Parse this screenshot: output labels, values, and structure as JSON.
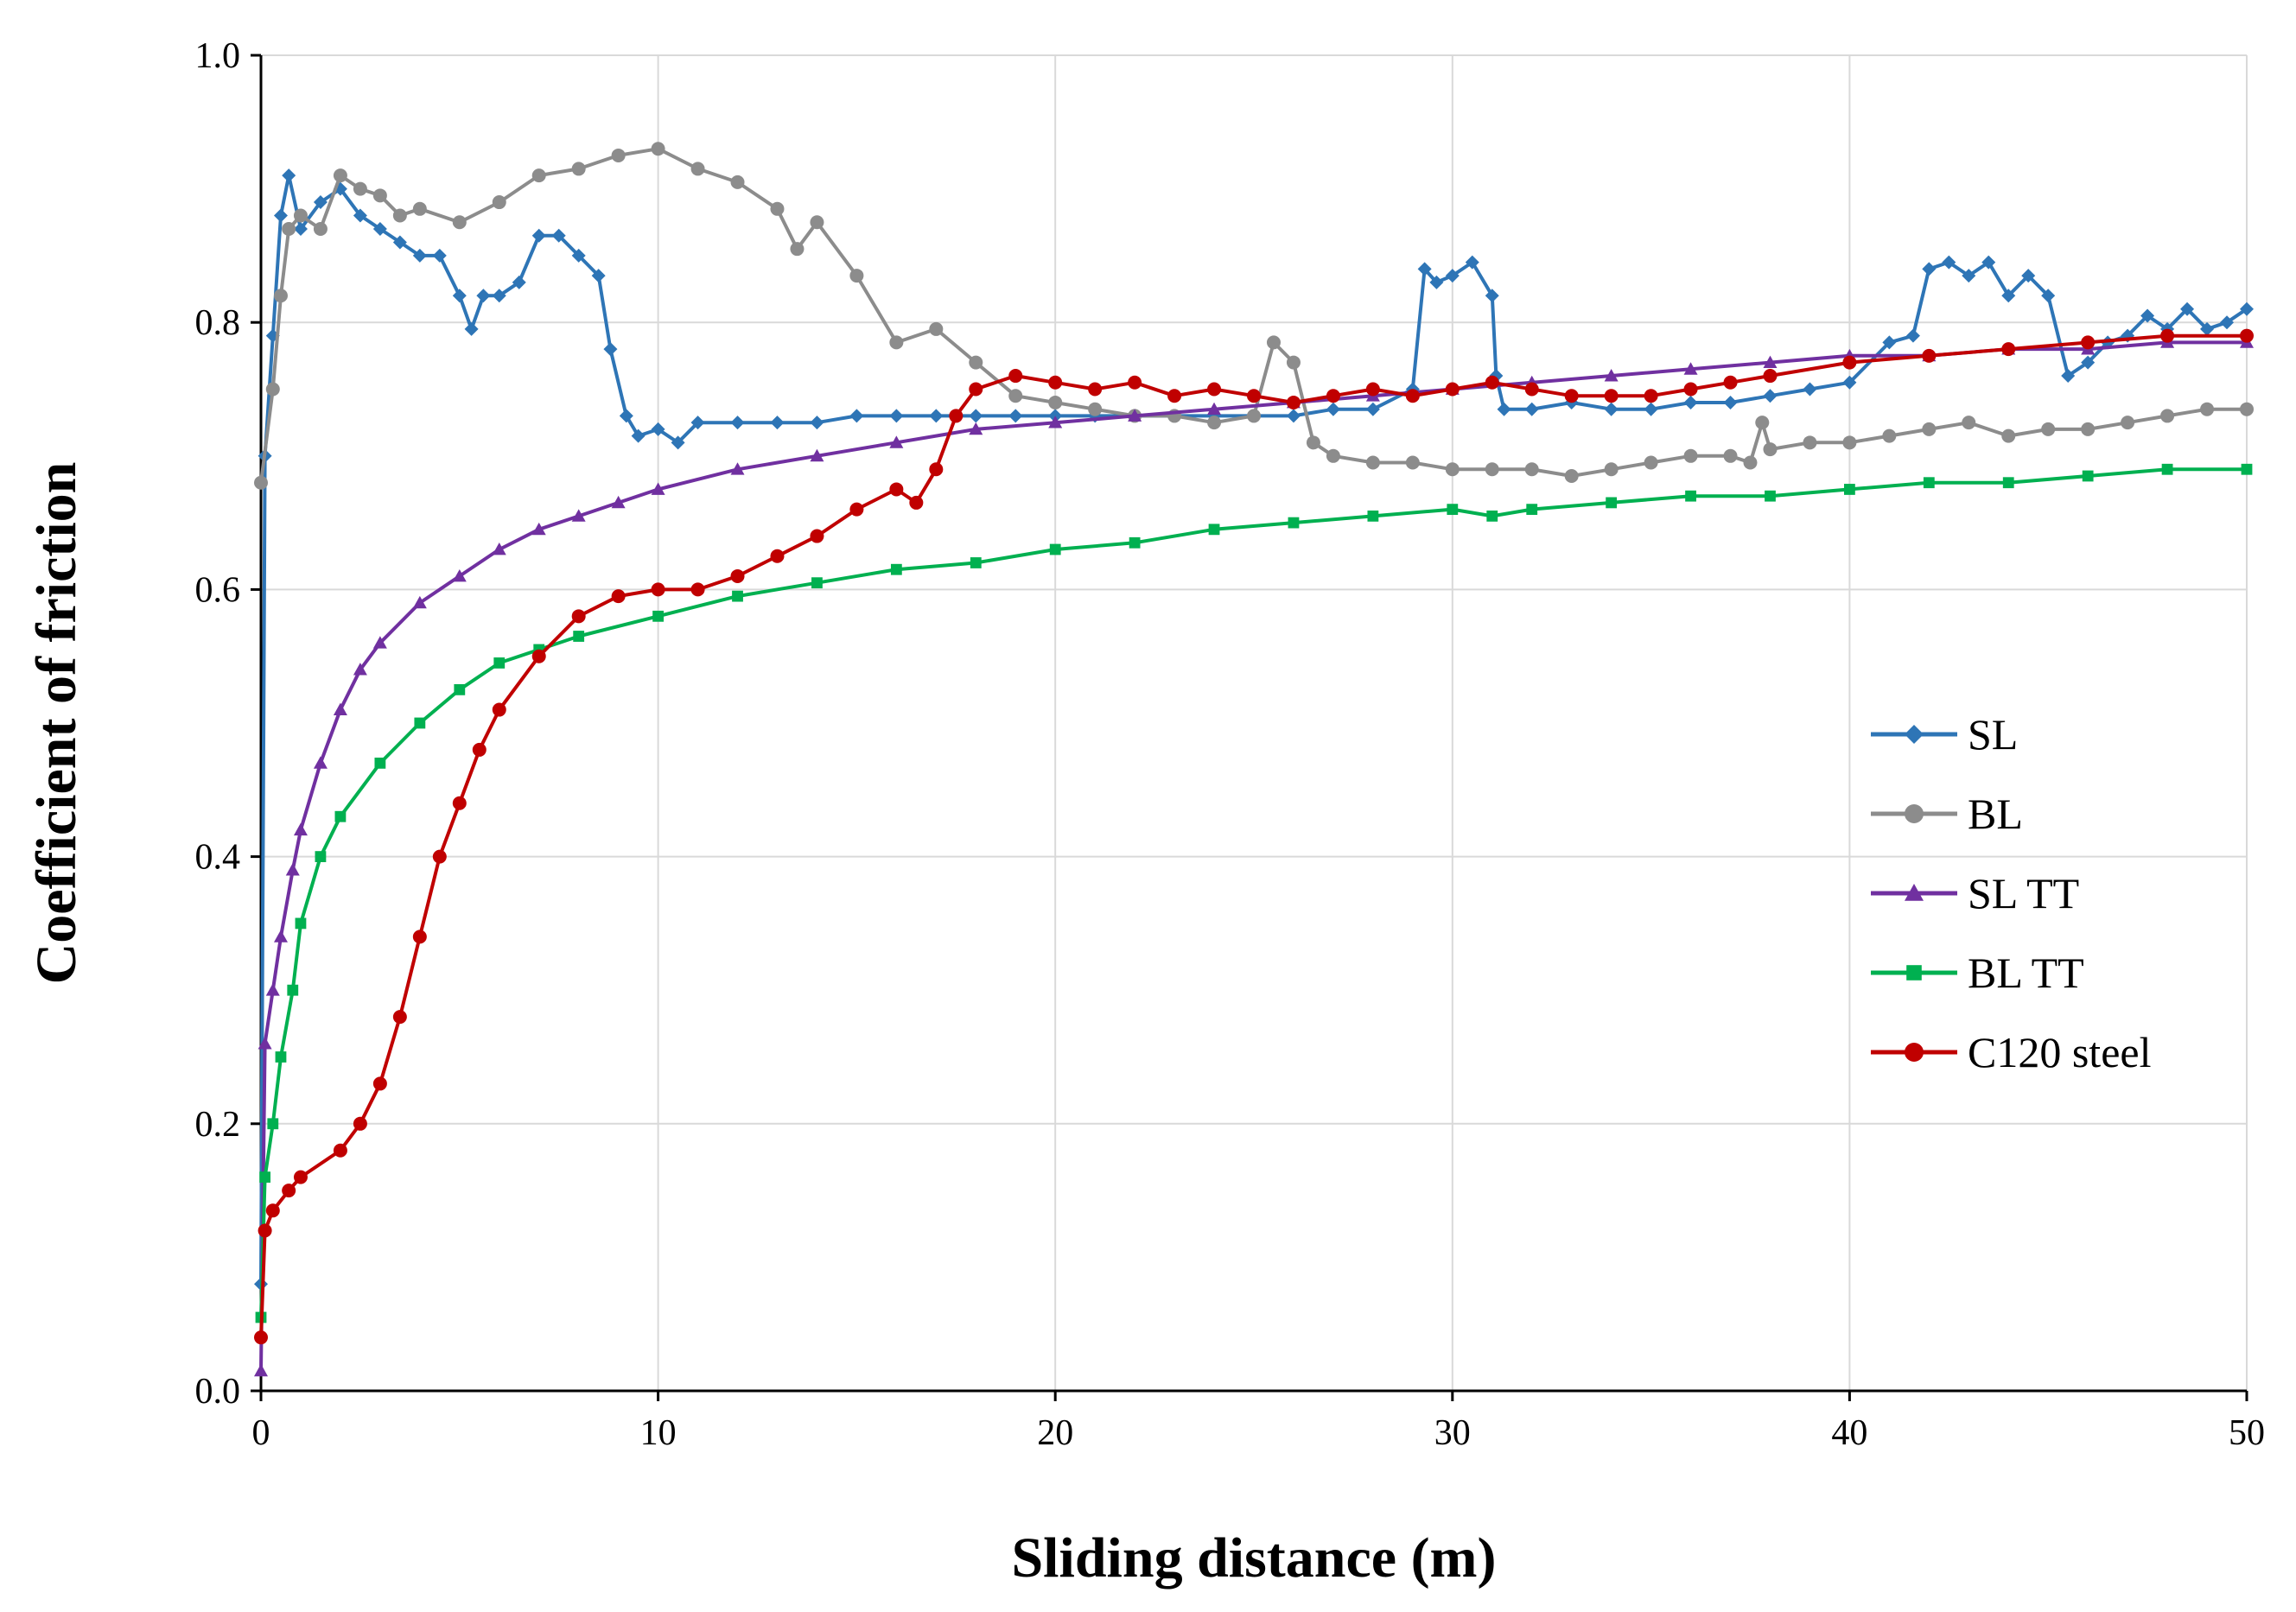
{
  "chart_data": {
    "type": "line",
    "title": "",
    "xlabel": "Sliding distance (m)",
    "ylabel": "Coefficient of friction",
    "xlim": [
      0,
      50
    ],
    "ylim": [
      0,
      1
    ],
    "xticks": [
      0,
      10,
      20,
      30,
      40,
      50
    ],
    "yticks": [
      0.0,
      0.2,
      0.4,
      0.6,
      0.8,
      1.0
    ],
    "xtick_labels": [
      "0",
      "10",
      "20",
      "30",
      "40",
      "50"
    ],
    "ytick_labels": [
      "0.0",
      "0.2",
      "0.4",
      "0.6",
      "0.8",
      "1.0"
    ],
    "grid": true,
    "legend_position": "right-center",
    "series": [
      {
        "name": "SL",
        "color": "#2E75B6",
        "marker": "diamond",
        "points": [
          [
            0,
            0.08
          ],
          [
            0.1,
            0.7
          ],
          [
            0.3,
            0.79
          ],
          [
            0.5,
            0.88
          ],
          [
            0.7,
            0.91
          ],
          [
            1,
            0.87
          ],
          [
            1.5,
            0.89
          ],
          [
            2,
            0.9
          ],
          [
            2.5,
            0.88
          ],
          [
            3,
            0.87
          ],
          [
            3.5,
            0.86
          ],
          [
            4,
            0.85
          ],
          [
            4.5,
            0.85
          ],
          [
            5,
            0.82
          ],
          [
            5.3,
            0.795
          ],
          [
            5.6,
            0.82
          ],
          [
            6,
            0.82
          ],
          [
            6.5,
            0.83
          ],
          [
            7,
            0.865
          ],
          [
            7.5,
            0.865
          ],
          [
            8,
            0.85
          ],
          [
            8.5,
            0.835
          ],
          [
            8.8,
            0.78
          ],
          [
            9.2,
            0.73
          ],
          [
            9.5,
            0.715
          ],
          [
            10,
            0.72
          ],
          [
            10.5,
            0.71
          ],
          [
            11,
            0.725
          ],
          [
            12,
            0.725
          ],
          [
            13,
            0.725
          ],
          [
            14,
            0.725
          ],
          [
            15,
            0.73
          ],
          [
            16,
            0.73
          ],
          [
            17,
            0.73
          ],
          [
            18,
            0.73
          ],
          [
            19,
            0.73
          ],
          [
            20,
            0.73
          ],
          [
            21,
            0.73
          ],
          [
            22,
            0.73
          ],
          [
            23,
            0.73
          ],
          [
            24,
            0.73
          ],
          [
            25,
            0.73
          ],
          [
            26,
            0.73
          ],
          [
            27,
            0.735
          ],
          [
            28,
            0.735
          ],
          [
            29,
            0.75
          ],
          [
            29.3,
            0.84
          ],
          [
            29.6,
            0.83
          ],
          [
            30,
            0.835
          ],
          [
            30.5,
            0.845
          ],
          [
            31,
            0.82
          ],
          [
            31.1,
            0.76
          ],
          [
            31.3,
            0.735
          ],
          [
            32,
            0.735
          ],
          [
            33,
            0.74
          ],
          [
            34,
            0.735
          ],
          [
            35,
            0.735
          ],
          [
            36,
            0.74
          ],
          [
            37,
            0.74
          ],
          [
            38,
            0.745
          ],
          [
            39,
            0.75
          ],
          [
            40,
            0.755
          ],
          [
            41,
            0.785
          ],
          [
            41.6,
            0.79
          ],
          [
            42,
            0.84
          ],
          [
            42.5,
            0.845
          ],
          [
            43,
            0.835
          ],
          [
            43.5,
            0.845
          ],
          [
            44,
            0.82
          ],
          [
            44.5,
            0.835
          ],
          [
            45,
            0.82
          ],
          [
            45.5,
            0.76
          ],
          [
            46,
            0.77
          ],
          [
            46.5,
            0.785
          ],
          [
            47,
            0.79
          ],
          [
            47.5,
            0.805
          ],
          [
            48,
            0.795
          ],
          [
            48.5,
            0.81
          ],
          [
            49,
            0.795
          ],
          [
            49.5,
            0.8
          ],
          [
            50,
            0.81
          ]
        ]
      },
      {
        "name": "BL",
        "color": "#8C8C8C",
        "marker": "circle",
        "points": [
          [
            0,
            0.68
          ],
          [
            0.3,
            0.75
          ],
          [
            0.5,
            0.82
          ],
          [
            0.7,
            0.87
          ],
          [
            1,
            0.88
          ],
          [
            1.5,
            0.87
          ],
          [
            2,
            0.91
          ],
          [
            2.5,
            0.9
          ],
          [
            3,
            0.895
          ],
          [
            3.5,
            0.88
          ],
          [
            4,
            0.885
          ],
          [
            5,
            0.875
          ],
          [
            6,
            0.89
          ],
          [
            7,
            0.91
          ],
          [
            8,
            0.915
          ],
          [
            9,
            0.925
          ],
          [
            10,
            0.93
          ],
          [
            11,
            0.915
          ],
          [
            12,
            0.905
          ],
          [
            13,
            0.885
          ],
          [
            13.5,
            0.855
          ],
          [
            14,
            0.875
          ],
          [
            15,
            0.835
          ],
          [
            16,
            0.785
          ],
          [
            17,
            0.795
          ],
          [
            18,
            0.77
          ],
          [
            19,
            0.745
          ],
          [
            20,
            0.74
          ],
          [
            21,
            0.735
          ],
          [
            22,
            0.73
          ],
          [
            23,
            0.73
          ],
          [
            24,
            0.725
          ],
          [
            25,
            0.73
          ],
          [
            25.5,
            0.785
          ],
          [
            26,
            0.77
          ],
          [
            26.5,
            0.71
          ],
          [
            27,
            0.7
          ],
          [
            28,
            0.695
          ],
          [
            29,
            0.695
          ],
          [
            30,
            0.69
          ],
          [
            31,
            0.69
          ],
          [
            32,
            0.69
          ],
          [
            33,
            0.685
          ],
          [
            34,
            0.69
          ],
          [
            35,
            0.695
          ],
          [
            36,
            0.7
          ],
          [
            37,
            0.7
          ],
          [
            37.5,
            0.695
          ],
          [
            37.8,
            0.725
          ],
          [
            38,
            0.705
          ],
          [
            39,
            0.71
          ],
          [
            40,
            0.71
          ],
          [
            41,
            0.715
          ],
          [
            42,
            0.72
          ],
          [
            43,
            0.725
          ],
          [
            44,
            0.715
          ],
          [
            45,
            0.72
          ],
          [
            46,
            0.72
          ],
          [
            47,
            0.725
          ],
          [
            48,
            0.73
          ],
          [
            49,
            0.735
          ],
          [
            50,
            0.735
          ]
        ]
      },
      {
        "name": "SL TT",
        "color": "#7030A0",
        "marker": "triangle",
        "points": [
          [
            0,
            0.015
          ],
          [
            0.1,
            0.26
          ],
          [
            0.3,
            0.3
          ],
          [
            0.5,
            0.34
          ],
          [
            0.8,
            0.39
          ],
          [
            1,
            0.42
          ],
          [
            1.5,
            0.47
          ],
          [
            2,
            0.51
          ],
          [
            2.5,
            0.54
          ],
          [
            3,
            0.56
          ],
          [
            4,
            0.59
          ],
          [
            5,
            0.61
          ],
          [
            6,
            0.63
          ],
          [
            7,
            0.645
          ],
          [
            8,
            0.655
          ],
          [
            9,
            0.665
          ],
          [
            10,
            0.675
          ],
          [
            12,
            0.69
          ],
          [
            14,
            0.7
          ],
          [
            16,
            0.71
          ],
          [
            18,
            0.72
          ],
          [
            20,
            0.725
          ],
          [
            22,
            0.73
          ],
          [
            24,
            0.735
          ],
          [
            26,
            0.74
          ],
          [
            28,
            0.745
          ],
          [
            30,
            0.75
          ],
          [
            32,
            0.755
          ],
          [
            34,
            0.76
          ],
          [
            36,
            0.765
          ],
          [
            38,
            0.77
          ],
          [
            40,
            0.775
          ],
          [
            42,
            0.775
          ],
          [
            44,
            0.78
          ],
          [
            46,
            0.78
          ],
          [
            48,
            0.785
          ],
          [
            50,
            0.785
          ]
        ]
      },
      {
        "name": "BL TT",
        "color": "#00B050",
        "marker": "square",
        "points": [
          [
            0,
            0.055
          ],
          [
            0.1,
            0.16
          ],
          [
            0.3,
            0.2
          ],
          [
            0.5,
            0.25
          ],
          [
            0.8,
            0.3
          ],
          [
            1,
            0.35
          ],
          [
            1.5,
            0.4
          ],
          [
            2,
            0.43
          ],
          [
            3,
            0.47
          ],
          [
            4,
            0.5
          ],
          [
            5,
            0.525
          ],
          [
            6,
            0.545
          ],
          [
            7,
            0.555
          ],
          [
            8,
            0.565
          ],
          [
            10,
            0.58
          ],
          [
            12,
            0.595
          ],
          [
            14,
            0.605
          ],
          [
            16,
            0.615
          ],
          [
            18,
            0.62
          ],
          [
            20,
            0.63
          ],
          [
            22,
            0.635
          ],
          [
            24,
            0.645
          ],
          [
            26,
            0.65
          ],
          [
            28,
            0.655
          ],
          [
            30,
            0.66
          ],
          [
            31,
            0.655
          ],
          [
            32,
            0.66
          ],
          [
            34,
            0.665
          ],
          [
            36,
            0.67
          ],
          [
            38,
            0.67
          ],
          [
            40,
            0.675
          ],
          [
            42,
            0.68
          ],
          [
            44,
            0.68
          ],
          [
            46,
            0.685
          ],
          [
            48,
            0.69
          ],
          [
            50,
            0.69
          ]
        ]
      },
      {
        "name": "C120 steel",
        "color": "#C00000",
        "marker": "circle",
        "points": [
          [
            0,
            0.04
          ],
          [
            0.1,
            0.12
          ],
          [
            0.3,
            0.135
          ],
          [
            0.7,
            0.15
          ],
          [
            1,
            0.16
          ],
          [
            2,
            0.18
          ],
          [
            2.5,
            0.2
          ],
          [
            3,
            0.23
          ],
          [
            3.5,
            0.28
          ],
          [
            4,
            0.34
          ],
          [
            4.5,
            0.4
          ],
          [
            5,
            0.44
          ],
          [
            5.5,
            0.48
          ],
          [
            6,
            0.51
          ],
          [
            7,
            0.55
          ],
          [
            8,
            0.58
          ],
          [
            9,
            0.595
          ],
          [
            10,
            0.6
          ],
          [
            11,
            0.6
          ],
          [
            12,
            0.61
          ],
          [
            13,
            0.625
          ],
          [
            14,
            0.64
          ],
          [
            15,
            0.66
          ],
          [
            16,
            0.675
          ],
          [
            16.5,
            0.665
          ],
          [
            17,
            0.69
          ],
          [
            17.5,
            0.73
          ],
          [
            18,
            0.75
          ],
          [
            19,
            0.76
          ],
          [
            20,
            0.755
          ],
          [
            21,
            0.75
          ],
          [
            22,
            0.755
          ],
          [
            23,
            0.745
          ],
          [
            24,
            0.75
          ],
          [
            25,
            0.745
          ],
          [
            26,
            0.74
          ],
          [
            27,
            0.745
          ],
          [
            28,
            0.75
          ],
          [
            29,
            0.745
          ],
          [
            30,
            0.75
          ],
          [
            31,
            0.755
          ],
          [
            32,
            0.75
          ],
          [
            33,
            0.745
          ],
          [
            34,
            0.745
          ],
          [
            35,
            0.745
          ],
          [
            36,
            0.75
          ],
          [
            37,
            0.755
          ],
          [
            38,
            0.76
          ],
          [
            40,
            0.77
          ],
          [
            42,
            0.775
          ],
          [
            44,
            0.78
          ],
          [
            46,
            0.785
          ],
          [
            48,
            0.79
          ],
          [
            50,
            0.79
          ]
        ]
      }
    ]
  }
}
